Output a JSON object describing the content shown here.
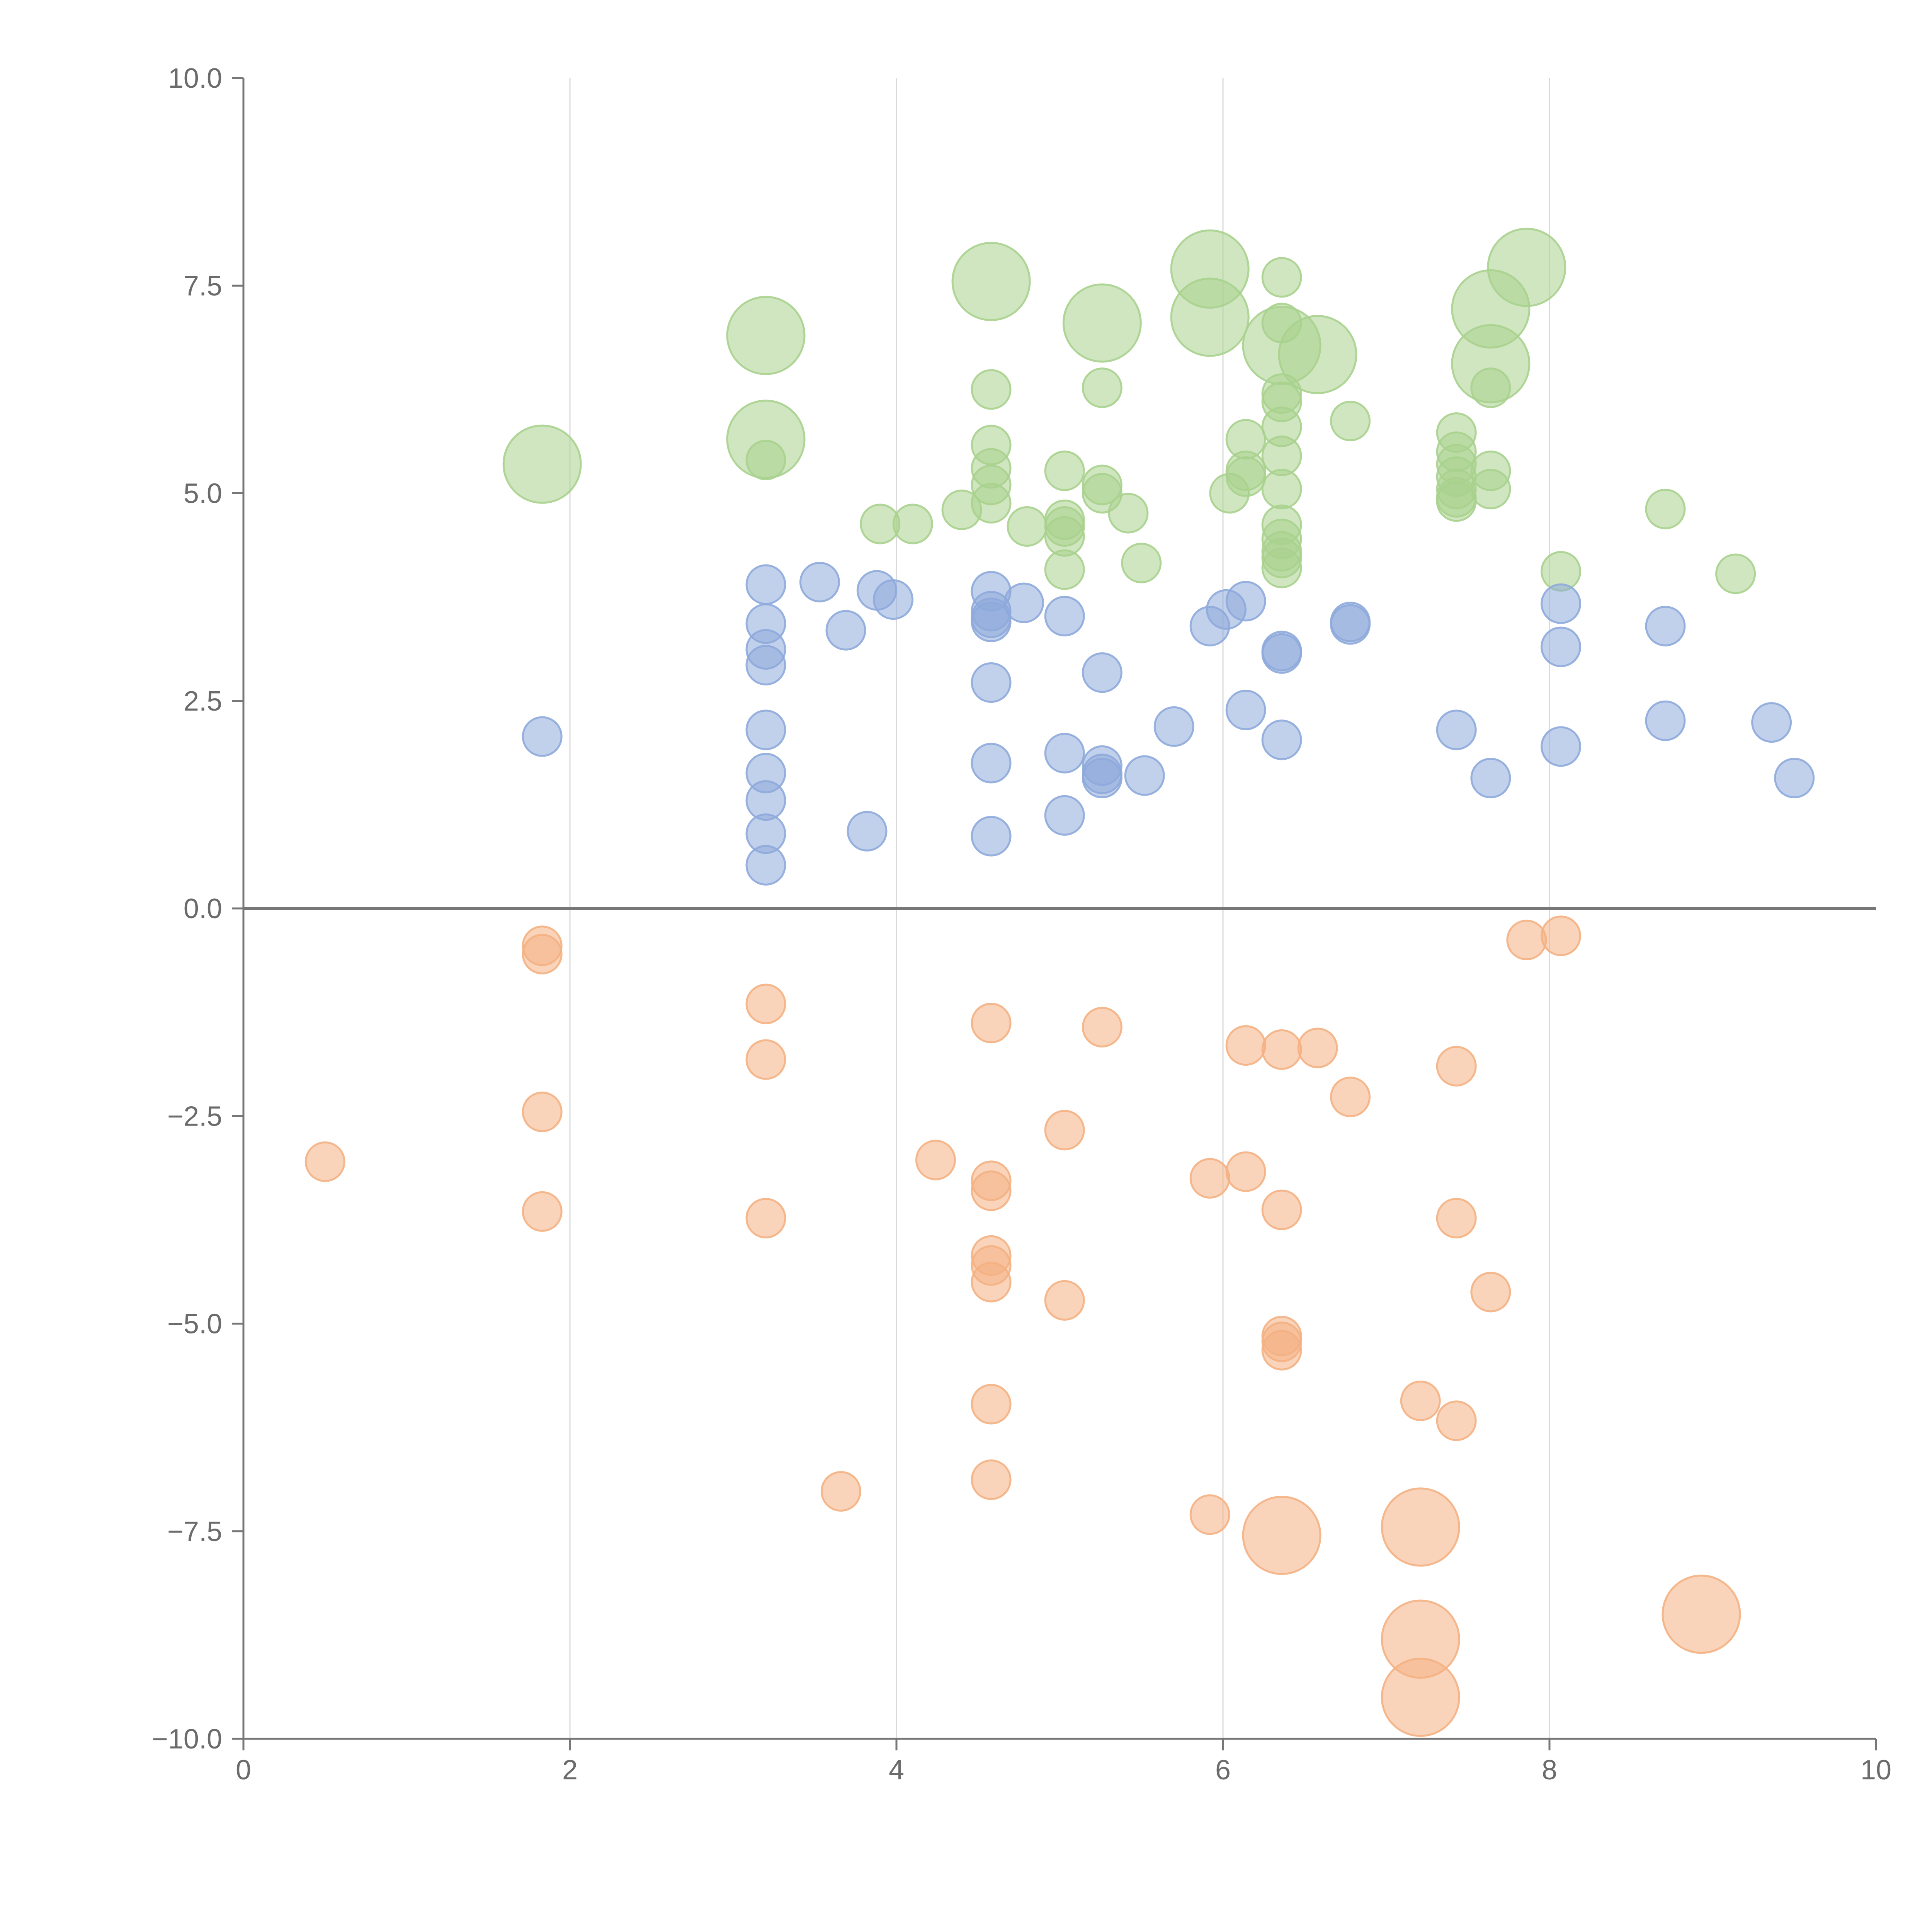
{
  "chart_data": {
    "type": "scatter",
    "title": "",
    "xlabel": "",
    "ylabel": "",
    "xlim": [
      0,
      10
    ],
    "ylim": [
      -10,
      10
    ],
    "x_ticks": [
      0,
      2,
      4,
      6,
      8,
      10
    ],
    "y_ticks": [
      -10,
      -7.5,
      -5,
      -2.5,
      0,
      2.5,
      5,
      7.5,
      10
    ],
    "x_tick_labels": [
      "0",
      "2",
      "4",
      "6",
      "8",
      "10"
    ],
    "y_tick_labels": [
      "−10.0",
      "−7.5",
      "−5.0",
      "−2.5",
      "0.0",
      "2.5",
      "5.0",
      "7.5",
      "10.0"
    ],
    "grid": "vertical",
    "zero_line": true,
    "legend": "none",
    "series": [
      {
        "color": "#a9d18e",
        "points": [
          [
            1.83,
            5.35,
            3
          ],
          [
            3.2,
            6.9,
            3
          ],
          [
            3.2,
            5.65,
            3
          ],
          [
            3.2,
            5.4,
            1
          ],
          [
            3.9,
            4.63,
            1
          ],
          [
            4.1,
            4.63,
            1
          ],
          [
            4.4,
            4.8,
            1
          ],
          [
            4.58,
            7.55,
            3
          ],
          [
            4.58,
            6.25,
            1
          ],
          [
            4.58,
            5.58,
            1
          ],
          [
            4.58,
            5.3,
            1
          ],
          [
            4.58,
            5.1,
            1
          ],
          [
            4.58,
            4.88,
            1
          ],
          [
            4.8,
            4.6,
            1
          ],
          [
            5.03,
            5.27,
            1
          ],
          [
            5.03,
            4.68,
            1
          ],
          [
            5.03,
            4.6,
            1
          ],
          [
            5.03,
            4.48,
            1
          ],
          [
            5.03,
            4.08,
            1
          ],
          [
            5.26,
            7.05,
            3
          ],
          [
            5.26,
            6.27,
            1
          ],
          [
            5.26,
            5.1,
            1
          ],
          [
            5.26,
            5.0,
            1
          ],
          [
            5.42,
            4.76,
            1
          ],
          [
            5.5,
            4.16,
            1
          ],
          [
            5.92,
            7.7,
            3
          ],
          [
            5.92,
            7.12,
            3
          ],
          [
            6.04,
            5.0,
            1
          ],
          [
            6.14,
            5.65,
            1
          ],
          [
            6.14,
            5.27,
            1
          ],
          [
            6.14,
            5.2,
            1
          ],
          [
            6.36,
            7.6,
            1
          ],
          [
            6.36,
            7.05,
            1
          ],
          [
            6.36,
            6.78,
            3
          ],
          [
            6.36,
            6.2,
            1
          ],
          [
            6.36,
            6.1,
            1
          ],
          [
            6.36,
            5.8,
            1
          ],
          [
            6.36,
            5.45,
            1
          ],
          [
            6.36,
            5.05,
            1
          ],
          [
            6.36,
            4.62,
            1
          ],
          [
            6.36,
            4.45,
            1
          ],
          [
            6.36,
            4.3,
            1
          ],
          [
            6.36,
            4.22,
            1
          ],
          [
            6.36,
            4.1,
            1
          ],
          [
            6.58,
            6.67,
            3
          ],
          [
            6.78,
            5.87,
            1
          ],
          [
            7.43,
            5.73,
            1
          ],
          [
            7.43,
            5.5,
            1
          ],
          [
            7.43,
            5.35,
            1
          ],
          [
            7.43,
            5.2,
            1
          ],
          [
            7.43,
            5.05,
            1
          ],
          [
            7.43,
            4.95,
            1
          ],
          [
            7.43,
            4.9,
            1
          ],
          [
            7.64,
            7.22,
            3
          ],
          [
            7.64,
            6.56,
            3
          ],
          [
            7.64,
            6.27,
            1
          ],
          [
            7.64,
            5.27,
            1
          ],
          [
            7.64,
            5.05,
            1
          ],
          [
            7.86,
            7.72,
            3
          ],
          [
            8.07,
            4.06,
            1
          ],
          [
            8.71,
            4.81,
            1
          ],
          [
            9.14,
            4.03,
            1
          ]
        ]
      },
      {
        "color": "#8eaadb",
        "points": [
          [
            1.83,
            2.07,
            1
          ],
          [
            3.2,
            3.9,
            1
          ],
          [
            3.2,
            3.43,
            1
          ],
          [
            3.2,
            3.12,
            1
          ],
          [
            3.2,
            2.93,
            1
          ],
          [
            3.2,
            2.15,
            1
          ],
          [
            3.2,
            1.63,
            1
          ],
          [
            3.2,
            1.3,
            1
          ],
          [
            3.2,
            0.9,
            1
          ],
          [
            3.2,
            0.52,
            1
          ],
          [
            3.53,
            3.93,
            1
          ],
          [
            3.69,
            3.35,
            1
          ],
          [
            3.82,
            0.93,
            1
          ],
          [
            3.88,
            3.83,
            1
          ],
          [
            3.98,
            3.72,
            1
          ],
          [
            4.58,
            3.82,
            1
          ],
          [
            4.58,
            3.58,
            1
          ],
          [
            4.58,
            3.5,
            1
          ],
          [
            4.58,
            3.45,
            1
          ],
          [
            4.58,
            2.72,
            1
          ],
          [
            4.58,
            1.75,
            1
          ],
          [
            4.58,
            0.87,
            1
          ],
          [
            4.78,
            3.68,
            1
          ],
          [
            5.03,
            3.52,
            1
          ],
          [
            5.03,
            1.87,
            1
          ],
          [
            5.03,
            1.12,
            1
          ],
          [
            5.26,
            2.84,
            1
          ],
          [
            5.26,
            1.72,
            1
          ],
          [
            5.26,
            1.62,
            1
          ],
          [
            5.26,
            1.57,
            1
          ],
          [
            5.52,
            1.6,
            1
          ],
          [
            5.7,
            2.19,
            1
          ],
          [
            5.92,
            3.4,
            1
          ],
          [
            6.02,
            3.6,
            1
          ],
          [
            6.14,
            3.7,
            1
          ],
          [
            6.14,
            2.39,
            1
          ],
          [
            6.36,
            3.1,
            1
          ],
          [
            6.36,
            3.07,
            1
          ],
          [
            6.36,
            2.03,
            1
          ],
          [
            6.78,
            3.45,
            1
          ],
          [
            6.78,
            3.42,
            1
          ],
          [
            7.43,
            2.15,
            1
          ],
          [
            7.64,
            1.57,
            1
          ],
          [
            8.07,
            3.67,
            1
          ],
          [
            8.07,
            3.15,
            1
          ],
          [
            8.07,
            1.95,
            1
          ],
          [
            8.71,
            3.4,
            1
          ],
          [
            8.71,
            2.26,
            1
          ],
          [
            9.36,
            2.24,
            1
          ],
          [
            9.5,
            1.57,
            1
          ]
        ]
      },
      {
        "color": "#f4b183",
        "points": [
          [
            0.5,
            -3.05,
            1
          ],
          [
            1.83,
            -0.45,
            1
          ],
          [
            1.83,
            -0.55,
            1
          ],
          [
            1.83,
            -2.45,
            1
          ],
          [
            1.83,
            -3.65,
            1
          ],
          [
            3.2,
            -1.15,
            1
          ],
          [
            3.2,
            -1.82,
            1
          ],
          [
            3.2,
            -3.73,
            1
          ],
          [
            3.66,
            -7.02,
            1
          ],
          [
            4.24,
            -3.03,
            1
          ],
          [
            4.58,
            -1.38,
            1
          ],
          [
            4.58,
            -3.28,
            1
          ],
          [
            4.58,
            -3.4,
            1
          ],
          [
            4.58,
            -4.18,
            1
          ],
          [
            4.58,
            -4.3,
            1
          ],
          [
            4.58,
            -4.5,
            1
          ],
          [
            4.58,
            -5.97,
            1
          ],
          [
            4.58,
            -6.88,
            1
          ],
          [
            5.03,
            -2.67,
            1
          ],
          [
            5.03,
            -4.72,
            1
          ],
          [
            5.26,
            -1.43,
            1
          ],
          [
            5.92,
            -3.25,
            1
          ],
          [
            5.92,
            -7.3,
            1
          ],
          [
            6.14,
            -1.65,
            1
          ],
          [
            6.14,
            -3.17,
            1
          ],
          [
            6.36,
            -1.7,
            1
          ],
          [
            6.36,
            -3.63,
            1
          ],
          [
            6.36,
            -5.15,
            1
          ],
          [
            6.36,
            -5.22,
            1
          ],
          [
            6.36,
            -5.32,
            1
          ],
          [
            6.36,
            -7.55,
            3
          ],
          [
            6.58,
            -1.68,
            1
          ],
          [
            6.78,
            -2.27,
            1
          ],
          [
            7.21,
            -5.93,
            1
          ],
          [
            7.21,
            -7.45,
            3
          ],
          [
            7.21,
            -8.8,
            3
          ],
          [
            7.21,
            -9.5,
            3
          ],
          [
            7.43,
            -1.9,
            1
          ],
          [
            7.43,
            -3.73,
            1
          ],
          [
            7.43,
            -6.17,
            1
          ],
          [
            7.64,
            -4.62,
            1
          ],
          [
            7.86,
            -0.38,
            1
          ],
          [
            8.07,
            -0.33,
            1
          ],
          [
            8.93,
            -8.5,
            3
          ]
        ]
      }
    ]
  }
}
